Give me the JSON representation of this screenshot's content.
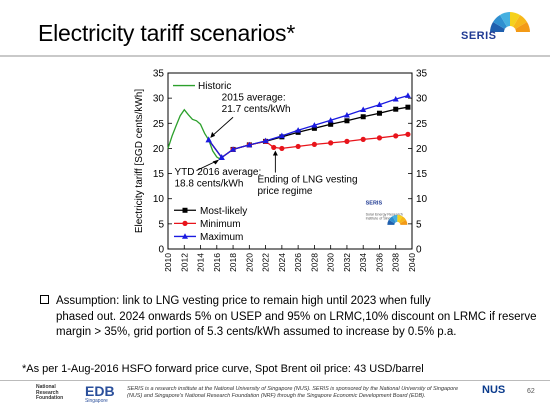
{
  "slide": {
    "title": "Electricity tariff scenarios*",
    "logo_text": "SERIS",
    "assumption_line1": "Assumption: link to LNG vesting price to remain high until 2023 when fully",
    "assumption_rest": "phased out. 2024 onwards 5% on USEP and 95% on LRMC,10% discount on LRMC if reserve margin > 35%, grid portion of 5.3 cents/kWh assumed to increase by 0.5% p.a.",
    "footnote": "*As per 1-Aug-2016 HSFO forward price curve, Spot Brent oil price: 43 USD/barrel",
    "footer_text": "SERIS is a research institute at the National University of Singapore (NUS). SERIS is sponsored by the National University of Singapore (NUS) and Singapore's National Research Foundation (NRF) through the Singapore Economic Development Board (EDB).",
    "nrf_text": "National Research Foundation",
    "edb_text": "EDB",
    "edb_sub": "Singapore",
    "nus_text": "NUS",
    "page_number": "62"
  },
  "colors": {
    "historic": "#2ca02c",
    "most_likely": "#000000",
    "minimum": "#e8141b",
    "maximum": "#1a1ae0",
    "logo_blue": "#1f3a93"
  },
  "chart_data": {
    "type": "line",
    "ylabel": "Electricity  tariff [SGD cents/kWh]",
    "ylim": [
      0,
      35
    ],
    "xlim": [
      2010,
      2040
    ],
    "y_ticks": [
      "0",
      "5",
      "10",
      "15",
      "20",
      "25",
      "30",
      "35"
    ],
    "x_ticks": [
      "2010",
      "2012",
      "2014",
      "2016",
      "2018",
      "2020",
      "2022",
      "2024",
      "2026",
      "2028",
      "2030",
      "2032",
      "2034",
      "2036",
      "2038",
      "2040"
    ],
    "series": [
      {
        "name": "Historic",
        "color": "#2ca02c",
        "marker": "none",
        "points": [
          [
            2010,
            20.0
          ],
          [
            2010.5,
            22.5
          ],
          [
            2011,
            24.5
          ],
          [
            2011.5,
            26.5
          ],
          [
            2012,
            27.7
          ],
          [
            2012.5,
            26.7
          ],
          [
            2013,
            25.8
          ],
          [
            2013.5,
            25.5
          ],
          [
            2014,
            24.8
          ],
          [
            2014.5,
            23.0
          ],
          [
            2015,
            21.7
          ],
          [
            2015.5,
            19.5
          ],
          [
            2016,
            18.3
          ],
          [
            2016.3,
            18.0
          ],
          [
            2016.6,
            18.2
          ]
        ]
      },
      {
        "name": "Most-likely",
        "color": "#000000",
        "marker": "square",
        "points": [
          [
            2015,
            21.7
          ],
          [
            2016.6,
            18.2
          ],
          [
            2018,
            19.8
          ],
          [
            2020,
            20.7
          ],
          [
            2022,
            21.4
          ],
          [
            2024,
            22.3
          ],
          [
            2026,
            23.2
          ],
          [
            2028,
            24.0
          ],
          [
            2030,
            24.8
          ],
          [
            2032,
            25.5
          ],
          [
            2034,
            26.3
          ],
          [
            2036,
            27.0
          ],
          [
            2038,
            27.8
          ],
          [
            2039.5,
            28.2
          ]
        ]
      },
      {
        "name": "Minimum",
        "color": "#e8141b",
        "marker": "circle",
        "points": [
          [
            2015,
            21.7
          ],
          [
            2016.6,
            18.2
          ],
          [
            2018,
            19.8
          ],
          [
            2020,
            20.7
          ],
          [
            2022,
            21.4
          ],
          [
            2023,
            20.2
          ],
          [
            2024,
            20.0
          ],
          [
            2026,
            20.4
          ],
          [
            2028,
            20.8
          ],
          [
            2030,
            21.1
          ],
          [
            2032,
            21.4
          ],
          [
            2034,
            21.8
          ],
          [
            2036,
            22.1
          ],
          [
            2038,
            22.5
          ],
          [
            2039.5,
            22.8
          ]
        ]
      },
      {
        "name": "Maximum",
        "color": "#1a1ae0",
        "marker": "triangle",
        "points": [
          [
            2015,
            21.7
          ],
          [
            2016.6,
            18.2
          ],
          [
            2018,
            19.8
          ],
          [
            2020,
            20.7
          ],
          [
            2022,
            21.5
          ],
          [
            2024,
            22.5
          ],
          [
            2026,
            23.6
          ],
          [
            2028,
            24.6
          ],
          [
            2030,
            25.6
          ],
          [
            2032,
            26.6
          ],
          [
            2034,
            27.7
          ],
          [
            2036,
            28.7
          ],
          [
            2038,
            29.8
          ],
          [
            2039.5,
            30.5
          ]
        ]
      }
    ],
    "annotations": [
      {
        "id": "a2015",
        "lines": [
          "2015 average:",
          "21.7 cents/kWh"
        ]
      },
      {
        "id": "a2016",
        "lines": [
          "YTD 2016 average:",
          "18.8 cents/kWh"
        ]
      },
      {
        "id": "alng",
        "lines": [
          "Ending of LNG vesting",
          "price regime"
        ]
      }
    ],
    "inset_logo": {
      "title": "SERIS",
      "sub": [
        "Solar Energy Research",
        "Institute of Singapore"
      ]
    },
    "legend_placement": "lower-left",
    "grid": false
  }
}
